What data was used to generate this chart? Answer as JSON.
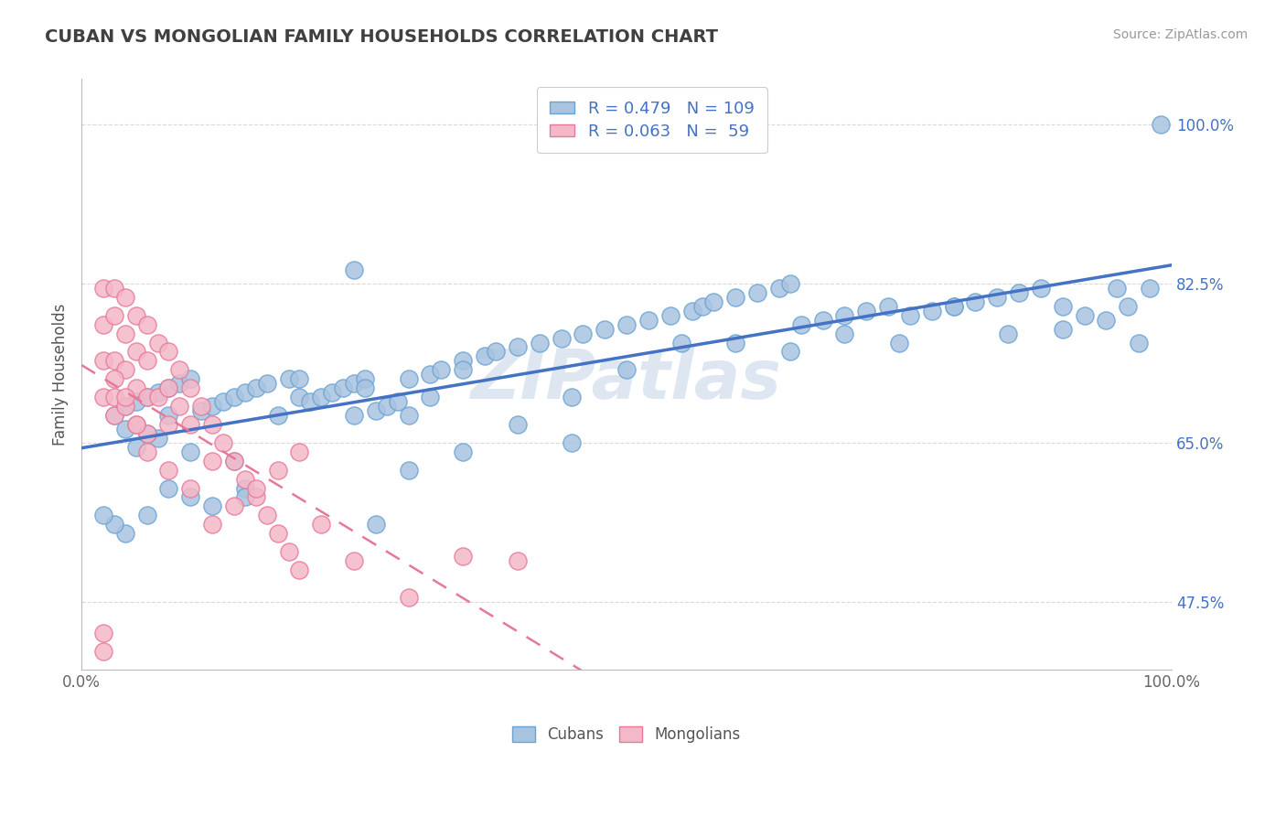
{
  "title": "CUBAN VS MONGOLIAN FAMILY HOUSEHOLDS CORRELATION CHART",
  "source_text": "Source: ZipAtlas.com",
  "ylabel": "Family Households",
  "cuban_R": 0.479,
  "cuban_N": 109,
  "mongolian_R": 0.063,
  "mongolian_N": 59,
  "cuban_color": "#a8c4e0",
  "cuban_edge_color": "#6aa3d4",
  "mongolian_color": "#f4b8c8",
  "mongolian_edge_color": "#e8789a",
  "cuban_line_color": "#4472c4",
  "mongolian_line_color": "#e8789a",
  "title_color": "#404040",
  "legend_text_color": "#4472c4",
  "background_color": "#ffffff",
  "grid_color": "#d0d0d0",
  "watermark_color": "#c8d8e8",
  "ytick_positions": [
    0.475,
    0.65,
    0.825,
    1.0
  ],
  "ytick_labels": [
    "47.5%",
    "65.0%",
    "82.5%",
    "100.0%"
  ],
  "cuban_x": [
    0.03,
    0.04,
    0.05,
    0.06,
    0.07,
    0.08,
    0.09,
    0.1,
    0.11,
    0.12,
    0.13,
    0.14,
    0.15,
    0.16,
    0.17,
    0.18,
    0.19,
    0.2,
    0.21,
    0.22,
    0.23,
    0.24,
    0.25,
    0.26,
    0.27,
    0.28,
    0.29,
    0.3,
    0.32,
    0.33,
    0.35,
    0.37,
    0.38,
    0.4,
    0.42,
    0.44,
    0.46,
    0.48,
    0.5,
    0.52,
    0.54,
    0.56,
    0.57,
    0.58,
    0.6,
    0.62,
    0.64,
    0.65,
    0.66,
    0.68,
    0.7,
    0.72,
    0.74,
    0.76,
    0.78,
    0.8,
    0.82,
    0.84,
    0.86,
    0.88,
    0.9,
    0.92,
    0.94,
    0.95,
    0.96,
    0.97,
    0.98,
    0.99,
    0.25,
    0.26,
    0.27,
    0.14,
    0.15,
    0.1,
    0.08,
    0.07,
    0.06,
    0.05,
    0.04,
    0.3,
    0.32,
    0.35,
    0.4,
    0.45,
    0.5,
    0.55,
    0.6,
    0.65,
    0.7,
    0.75,
    0.8,
    0.85,
    0.9,
    0.45,
    0.35,
    0.3,
    0.25,
    0.2,
    0.15,
    0.12,
    0.1,
    0.08,
    0.06,
    0.04,
    0.03,
    0.02
  ],
  "cuban_y": [
    0.68,
    0.69,
    0.695,
    0.7,
    0.705,
    0.71,
    0.715,
    0.72,
    0.685,
    0.69,
    0.695,
    0.7,
    0.705,
    0.71,
    0.715,
    0.68,
    0.72,
    0.7,
    0.695,
    0.7,
    0.705,
    0.71,
    0.715,
    0.72,
    0.685,
    0.69,
    0.695,
    0.72,
    0.725,
    0.73,
    0.74,
    0.745,
    0.75,
    0.755,
    0.76,
    0.765,
    0.77,
    0.775,
    0.78,
    0.785,
    0.79,
    0.795,
    0.8,
    0.805,
    0.81,
    0.815,
    0.82,
    0.825,
    0.78,
    0.785,
    0.79,
    0.795,
    0.8,
    0.79,
    0.795,
    0.8,
    0.805,
    0.81,
    0.815,
    0.82,
    0.8,
    0.79,
    0.785,
    0.82,
    0.8,
    0.76,
    0.82,
    1.0,
    0.84,
    0.71,
    0.56,
    0.63,
    0.6,
    0.64,
    0.68,
    0.655,
    0.66,
    0.645,
    0.665,
    0.68,
    0.7,
    0.73,
    0.67,
    0.7,
    0.73,
    0.76,
    0.76,
    0.75,
    0.77,
    0.76,
    0.8,
    0.77,
    0.775,
    0.65,
    0.64,
    0.62,
    0.68,
    0.72,
    0.59,
    0.58,
    0.59,
    0.6,
    0.57,
    0.55,
    0.56,
    0.57
  ],
  "mongolian_x": [
    0.02,
    0.02,
    0.02,
    0.02,
    0.03,
    0.03,
    0.03,
    0.03,
    0.03,
    0.04,
    0.04,
    0.04,
    0.04,
    0.05,
    0.05,
    0.05,
    0.05,
    0.06,
    0.06,
    0.06,
    0.06,
    0.07,
    0.07,
    0.08,
    0.08,
    0.08,
    0.09,
    0.09,
    0.1,
    0.1,
    0.11,
    0.12,
    0.12,
    0.13,
    0.14,
    0.15,
    0.16,
    0.17,
    0.18,
    0.19,
    0.2,
    0.22,
    0.25,
    0.3,
    0.35,
    0.4,
    0.2,
    0.18,
    0.16,
    0.14,
    0.12,
    0.1,
    0.08,
    0.06,
    0.05,
    0.04,
    0.03,
    0.02,
    0.02
  ],
  "mongolian_y": [
    0.82,
    0.78,
    0.74,
    0.7,
    0.82,
    0.79,
    0.74,
    0.7,
    0.68,
    0.81,
    0.77,
    0.73,
    0.69,
    0.79,
    0.75,
    0.71,
    0.67,
    0.78,
    0.74,
    0.7,
    0.66,
    0.76,
    0.7,
    0.75,
    0.71,
    0.67,
    0.73,
    0.69,
    0.71,
    0.67,
    0.69,
    0.67,
    0.63,
    0.65,
    0.63,
    0.61,
    0.59,
    0.57,
    0.55,
    0.53,
    0.51,
    0.56,
    0.52,
    0.48,
    0.525,
    0.52,
    0.64,
    0.62,
    0.6,
    0.58,
    0.56,
    0.6,
    0.62,
    0.64,
    0.67,
    0.7,
    0.72,
    0.44,
    0.42
  ]
}
